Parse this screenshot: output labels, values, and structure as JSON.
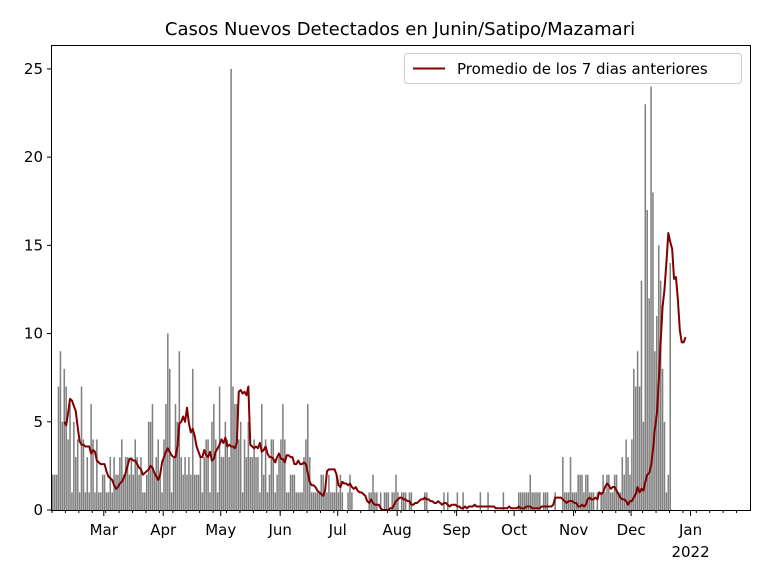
{
  "chart_data": {
    "type": "bar",
    "title": "Casos Nuevos Detectados en Junin/Satipo/Mazamari",
    "xlabel": "",
    "ylabel": "",
    "ylim": [
      0,
      26.3
    ],
    "x_start": "2021-02-02",
    "x_end": "2022-01-31",
    "y_ticks": [
      0,
      5,
      10,
      15,
      20,
      25
    ],
    "x_ticks": [
      {
        "date": "2021-03-01",
        "label": "Mar",
        "sublabel": ""
      },
      {
        "date": "2021-04-01",
        "label": "Apr",
        "sublabel": ""
      },
      {
        "date": "2021-05-01",
        "label": "May",
        "sublabel": ""
      },
      {
        "date": "2021-06-01",
        "label": "Jun",
        "sublabel": ""
      },
      {
        "date": "2021-07-01",
        "label": "Jul",
        "sublabel": ""
      },
      {
        "date": "2021-08-01",
        "label": "Aug",
        "sublabel": ""
      },
      {
        "date": "2021-09-01",
        "label": "Sep",
        "sublabel": ""
      },
      {
        "date": "2021-10-01",
        "label": "Oct",
        "sublabel": ""
      },
      {
        "date": "2021-11-01",
        "label": "Nov",
        "sublabel": ""
      },
      {
        "date": "2021-12-01",
        "label": "Dec",
        "sublabel": ""
      },
      {
        "date": "2022-01-01",
        "label": "Jan",
        "sublabel": "2022"
      }
    ],
    "legend": {
      "position": "top-right",
      "entry": "Promedio de los 7 dias anteriores"
    },
    "colors": {
      "bars": "#808080",
      "line": "#800000"
    },
    "series": [
      {
        "name": "Casos nuevos",
        "kind": "bar",
        "values": [
          2,
          2,
          2,
          7,
          9,
          5,
          8,
          7,
          4,
          6,
          1,
          5,
          3,
          4,
          1,
          7,
          4,
          1,
          3,
          1,
          6,
          4,
          1,
          4,
          1,
          1,
          2,
          2,
          1,
          1,
          3,
          1,
          3,
          2,
          2,
          3,
          4,
          2,
          3,
          3,
          2,
          3,
          2,
          4,
          3,
          2,
          3,
          1,
          1,
          2,
          5,
          5,
          6,
          2,
          3,
          4,
          2,
          1,
          4,
          6,
          10,
          8,
          1,
          3,
          6,
          5,
          9,
          3,
          2,
          3,
          2,
          3,
          2,
          8,
          2,
          2,
          2,
          3,
          1,
          3,
          4,
          4,
          1,
          5,
          6,
          4,
          1,
          7,
          3,
          3,
          5,
          4,
          3,
          25,
          7,
          6,
          6,
          4,
          5,
          1,
          4,
          3,
          5,
          3,
          3,
          4,
          3,
          3,
          1,
          6,
          2,
          4,
          1,
          2,
          4,
          4,
          1,
          2,
          3,
          4,
          6,
          4,
          1,
          1,
          2,
          2,
          2,
          1,
          1,
          1,
          1,
          3,
          4,
          6,
          3,
          1,
          1,
          1,
          1,
          1,
          2,
          2,
          1,
          1,
          2,
          1,
          1,
          1,
          2,
          1,
          2,
          1,
          0,
          0,
          1,
          2,
          1,
          0,
          0,
          0,
          0,
          0,
          0,
          0,
          0,
          1,
          1,
          2,
          1,
          1,
          0,
          1,
          0,
          1,
          1,
          1,
          0,
          1,
          1,
          2,
          1,
          0,
          1,
          1,
          1,
          0,
          1,
          1,
          0,
          0,
          0,
          0,
          0,
          0,
          1,
          1,
          0,
          0,
          0,
          0,
          0,
          0,
          0,
          0,
          1,
          0,
          1,
          0,
          0,
          0,
          0,
          1,
          0,
          0,
          1,
          0,
          0,
          0,
          0,
          0,
          0,
          0,
          0,
          1,
          0,
          0,
          0,
          1,
          0,
          0,
          0,
          0,
          0,
          0,
          0,
          1,
          0,
          0,
          0,
          0,
          0,
          0,
          0,
          1,
          1,
          1,
          1,
          1,
          1,
          2,
          1,
          1,
          1,
          1,
          1,
          0,
          1,
          1,
          1,
          0,
          0,
          0,
          1,
          0,
          0,
          0,
          3,
          1,
          1,
          1,
          3,
          1,
          1,
          1,
          2,
          2,
          2,
          1,
          2,
          2,
          1,
          1,
          1,
          0,
          1,
          0,
          1,
          2,
          1,
          2,
          2,
          1,
          1,
          2,
          2,
          1,
          1,
          3,
          2,
          4,
          3,
          2,
          4,
          8,
          7,
          9,
          7,
          13,
          5,
          23,
          17,
          12,
          24,
          18,
          9,
          11,
          15,
          13,
          8,
          5,
          1,
          2,
          14
        ]
      },
      {
        "name": "Promedio de los 7 dias anteriores",
        "kind": "line",
        "values": [
          null,
          null,
          null,
          null,
          null,
          null,
          5,
          4.8,
          5.5,
          6.3,
          6.2,
          5.9,
          5.6,
          4.7,
          3.9,
          3.7,
          3.7,
          3.6,
          3.6,
          3.6,
          3.2,
          3.4,
          3.3,
          2.8,
          2.7,
          2.6,
          2.6,
          2.6,
          2.2,
          1.9,
          1.8,
          1.7,
          1.4,
          1.2,
          1.3,
          1.5,
          1.6,
          1.8,
          2.1,
          2.5,
          2.9,
          2.9,
          2.8,
          2.8,
          2.6,
          2.4,
          2.3,
          2.0,
          2.1,
          2.2,
          2.3,
          2.5,
          2.4,
          2.1,
          1.9,
          1.7,
          2.0,
          2.7,
          3.0,
          3.3,
          3.5,
          3.3,
          3.1,
          3.0,
          3.0,
          3.6,
          4.9,
          5.0,
          5.3,
          5.0,
          5.8,
          4.9,
          4.4,
          4.6,
          4.2,
          3.6,
          3.3,
          3.0,
          3.0,
          3.4,
          3.1,
          3.0,
          3.3,
          2.8,
          2.9,
          3.3,
          3.5,
          3.7,
          4.0,
          3.8,
          4.1,
          3.6,
          3.7,
          3.6,
          3.6,
          3.5,
          3.8,
          6.7,
          6.8,
          6.6,
          6.7,
          6.5,
          7.0,
          3.7,
          3.6,
          3.5,
          3.6,
          3.5,
          3.8,
          3.3,
          3.4,
          3.6,
          3.2,
          3.0,
          3.0,
          2.9,
          2.7,
          3.0,
          3.2,
          2.9,
          2.9,
          2.7,
          3.1,
          3.1,
          3.0,
          3.0,
          2.6,
          2.6,
          2.8,
          2.6,
          2.6,
          2.7,
          2.6,
          2.1,
          1.6,
          1.4,
          1.4,
          1.3,
          1.1,
          1.0,
          0.9,
          0.8,
          1.1,
          2.2,
          2.3,
          2.3,
          2.3,
          2.3,
          2.0,
          1.4,
          1.3,
          1.6,
          1.5,
          1.5,
          1.4,
          1.5,
          1.3,
          1.2,
          1.3,
          1.1,
          1.0,
          1.0,
          0.9,
          0.8,
          0.5,
          0.4,
          0.6,
          0.4,
          0.3,
          0.3,
          0.3,
          0.1,
          0.0,
          0.0,
          0.0,
          0.0,
          0.1,
          0.1,
          0.3,
          0.5,
          0.6,
          0.7,
          0.7,
          0.6,
          0.6,
          0.5,
          0.5,
          0.3,
          0.3,
          0.4,
          0.4,
          0.5,
          0.6,
          0.6,
          0.7,
          0.6,
          0.6,
          0.5,
          0.5,
          0.4,
          0.4,
          0.5,
          0.4,
          0.3,
          0.4,
          0.4,
          0.3,
          0.2,
          0.3,
          0.3,
          0.3,
          0.2,
          0.2,
          0.1,
          0.1,
          0.2,
          0.1,
          0.2,
          0.2,
          0.2,
          0.3,
          0.2,
          0.2,
          0.2,
          0.2,
          0.2,
          0.2,
          0.2,
          0.2,
          0.2,
          0.2,
          0.1,
          0.1,
          0.1,
          0.1,
          0.1,
          0.1,
          0.1,
          0.2,
          0.1,
          0.1,
          0.1,
          0.1,
          0.2,
          0.1,
          0.1,
          0.1,
          0.2,
          0.2,
          0.2,
          0.1,
          0.1,
          0.1,
          0.1,
          0.1,
          0.2,
          0.2,
          0.2,
          0.2,
          0.2,
          0.2,
          0.3,
          0.7,
          0.7,
          0.7,
          0.7,
          0.6,
          0.5,
          0.4,
          0.5,
          0.5,
          0.5,
          0.4,
          0.4,
          0.2,
          0.2,
          0.3,
          0.2,
          0.3,
          0.6,
          0.7,
          0.6,
          0.6,
          0.7,
          0.6,
          1.0,
          0.9,
          1.0,
          1.3,
          1.5,
          1.4,
          1.2,
          1.3,
          1.3,
          1.1,
          0.9,
          0.7,
          0.6,
          0.6,
          0.5,
          0.3,
          0.5,
          0.5,
          0.7,
          0.9,
          1.3,
          1.0,
          1.2,
          1.1,
          1.6,
          2.0,
          2.1,
          2.5,
          3.4,
          4.6,
          5.4,
          7.2,
          9.5,
          11.5,
          12.5,
          14.0,
          15.7,
          15.2,
          14.8,
          13.1,
          13.2,
          11.9,
          10.2,
          9.5,
          9.5,
          9.8
        ]
      }
    ]
  }
}
